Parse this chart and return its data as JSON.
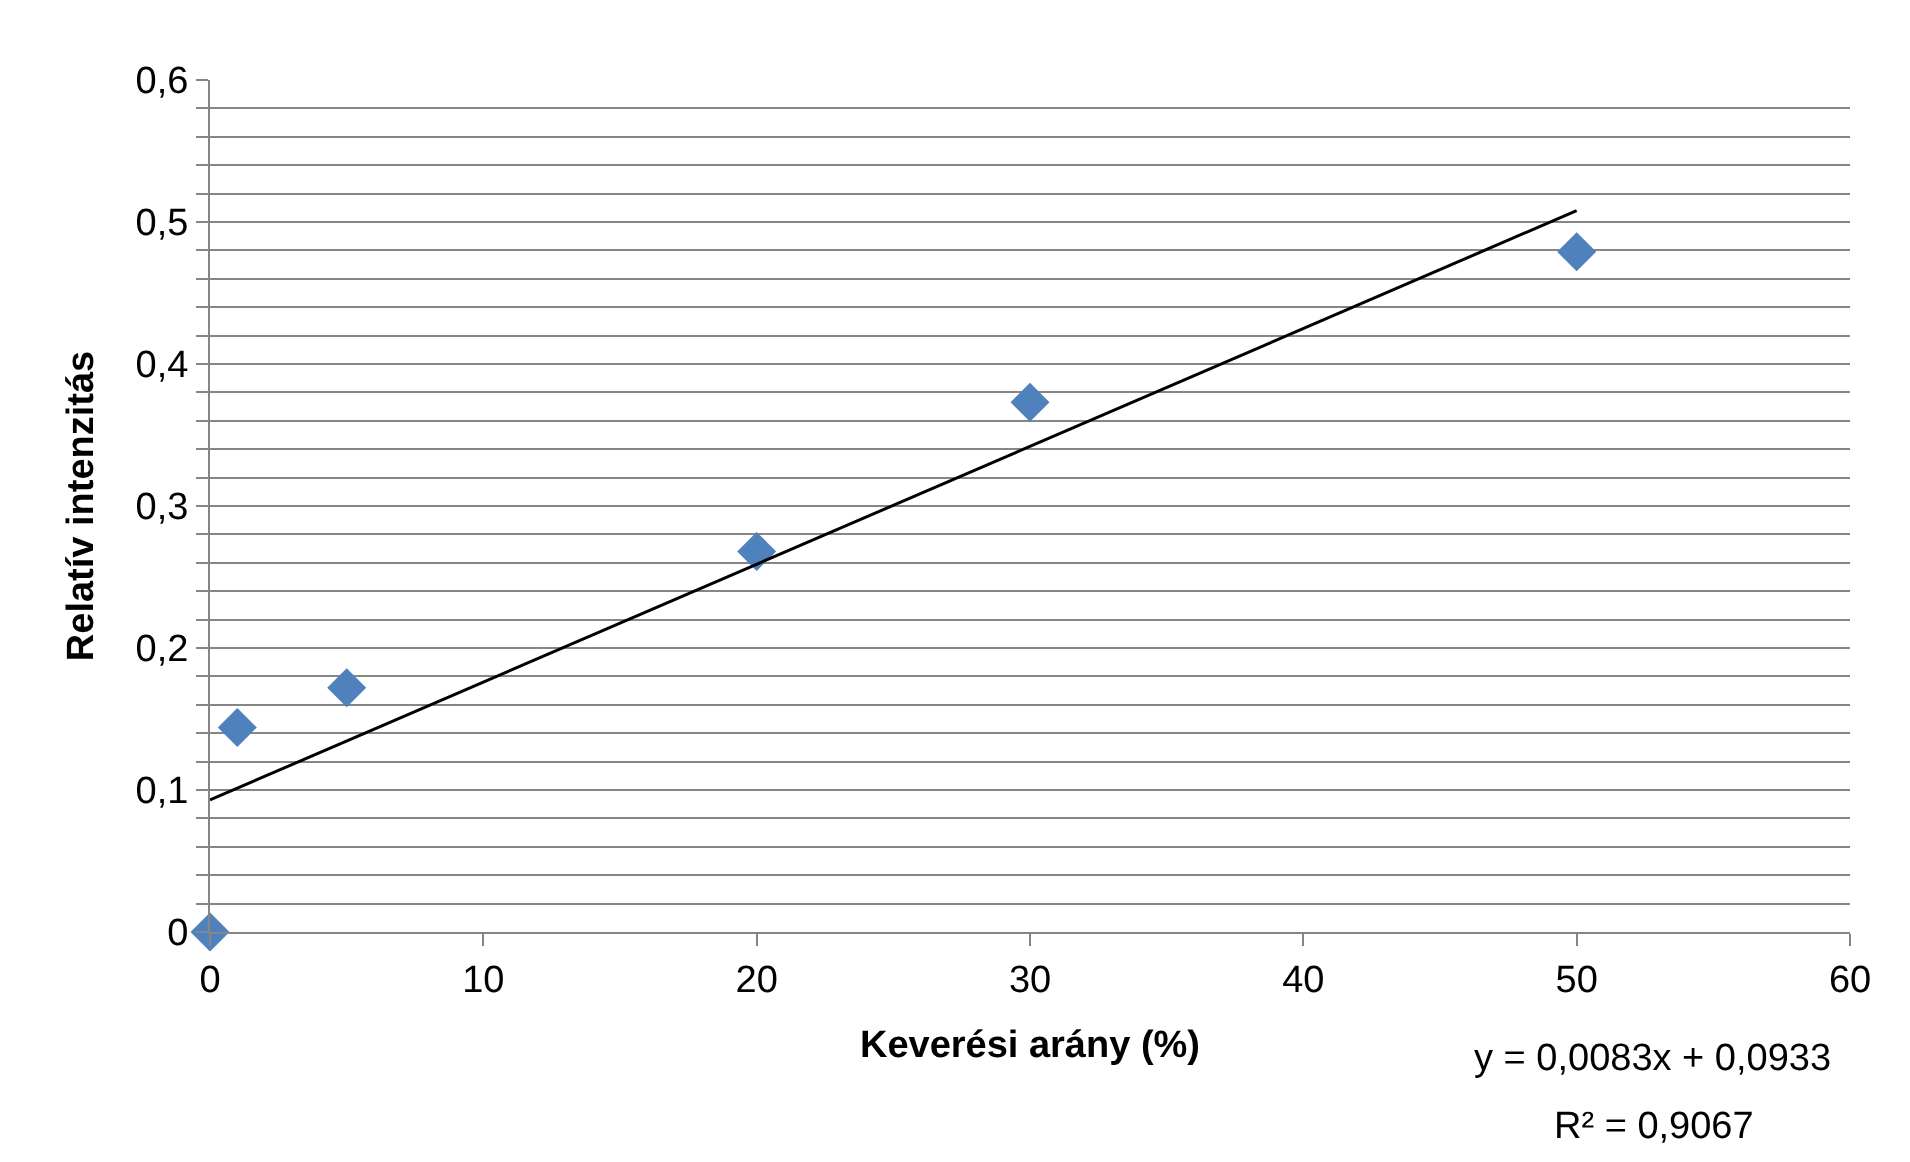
{
  "chart_data": {
    "type": "scatter",
    "xlabel": "Keverési arány (%)",
    "ylabel": "Relatív intenzitás",
    "xlim": [
      0,
      60
    ],
    "xticks": [
      0,
      10,
      20,
      30,
      40,
      50,
      60
    ],
    "ylim": [
      0,
      0.6
    ],
    "yticks": [
      0,
      {
        "value": 0.02,
        "label": null
      },
      {
        "value": 0.04,
        "label": null
      },
      {
        "value": 0.06,
        "label": null
      },
      {
        "value": 0.08,
        "label": null
      },
      {
        "value": 0.1,
        "label": "0,1"
      },
      {
        "value": 0.12,
        "label": null
      },
      {
        "value": 0.14,
        "label": null
      },
      {
        "value": 0.16,
        "label": null
      },
      {
        "value": 0.18,
        "label": null
      },
      {
        "value": 0.2,
        "label": "0,2"
      },
      {
        "value": 0.22,
        "label": null
      },
      {
        "value": 0.24,
        "label": null
      },
      {
        "value": 0.26,
        "label": null
      },
      {
        "value": 0.28,
        "label": null
      },
      {
        "value": 0.3,
        "label": "0,3"
      },
      {
        "value": 0.32,
        "label": null
      },
      {
        "value": 0.34,
        "label": null
      },
      {
        "value": 0.36,
        "label": null
      },
      {
        "value": 0.38,
        "label": null
      },
      {
        "value": 0.4,
        "label": "0,4"
      },
      {
        "value": 0.42,
        "label": null
      },
      {
        "value": 0.44,
        "label": null
      },
      {
        "value": 0.46,
        "label": null
      },
      {
        "value": 0.48,
        "label": null
      },
      {
        "value": 0.5,
        "label": "0,5"
      },
      {
        "value": 0.52,
        "label": null
      },
      {
        "value": 0.54,
        "label": null
      },
      {
        "value": 0.56,
        "label": null
      },
      {
        "value": 0.58,
        "label": null
      },
      {
        "value": 0.6,
        "label": "0,6"
      }
    ],
    "grid": "y",
    "series": [
      {
        "marker": "diamond",
        "color": "#4f81bd",
        "x": [
          0,
          1,
          5,
          20,
          30,
          50
        ],
        "values": [
          0,
          0.144,
          0.172,
          0.268,
          0.373,
          0.479
        ]
      },
      {
        "type": "line",
        "marker": "none",
        "color": "#000000",
        "x": [
          0,
          50
        ],
        "values": [
          0.093,
          0.508
        ]
      }
    ],
    "annotations": [
      "y = 0,0083x + 0,0933",
      "R² = 0,9067"
    ]
  }
}
